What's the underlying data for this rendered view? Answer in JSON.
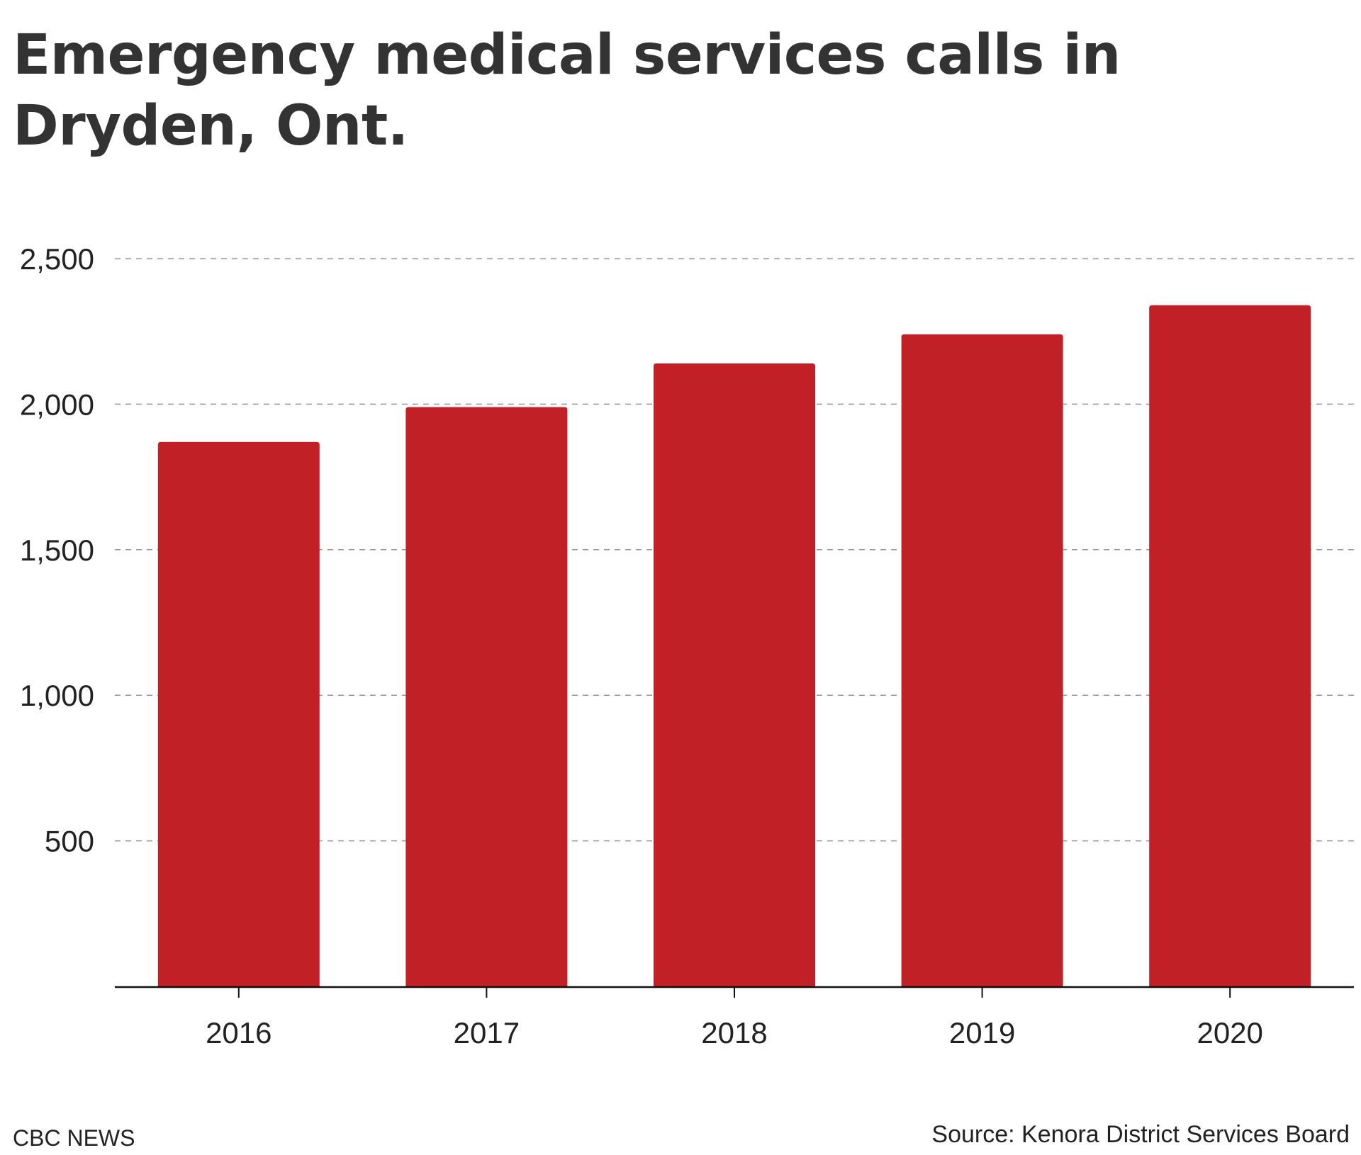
{
  "chart_data": {
    "type": "bar",
    "title": "Emergency medical services calls in Dryden, Ont.",
    "categories": [
      "2016",
      "2017",
      "2018",
      "2019",
      "2020"
    ],
    "values": [
      1870,
      1990,
      2140,
      2240,
      2340
    ],
    "ylim": [
      0,
      2500
    ],
    "yticks": [
      500,
      1000,
      1500,
      2000,
      2500
    ],
    "ytick_labels": [
      "500",
      "1,000",
      "1,500",
      "2,000",
      "2,500"
    ],
    "xlabel": "",
    "ylabel": "",
    "grid": true,
    "legend": "none"
  },
  "colors": {
    "bar": "#c22027",
    "grid": "#999999",
    "axis": "#111111",
    "text": "#333333"
  },
  "footer": {
    "brand": "CBC NEWS",
    "source": "Source: Kenora District Services Board"
  }
}
